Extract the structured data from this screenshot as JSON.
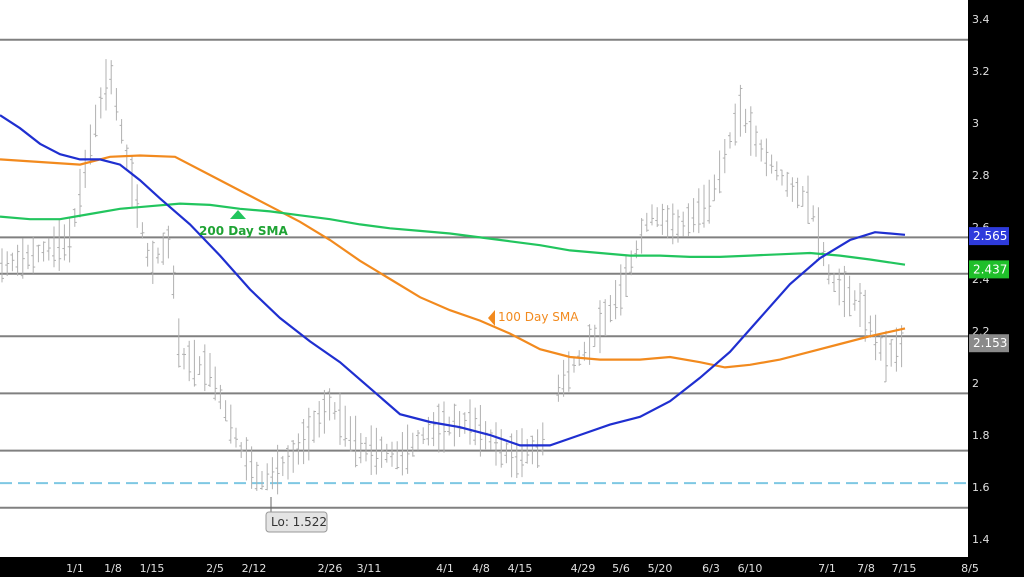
{
  "colors": {
    "background": "#ffffff",
    "axis_panel": "#000000",
    "tick_text": "#e0e0e0",
    "level_line": "#808080",
    "dashed_level": "#7ec8e3",
    "price_bars": "#b0b0b0",
    "sma_blue": "#1f2fd0",
    "sma_green": "#22c55e",
    "sma_orange": "#f28a1e",
    "badge_blue": "#2e3bdc",
    "badge_green": "#1fbf2a",
    "badge_gray": "#8a8a8a"
  },
  "chart_data": {
    "type": "line",
    "x_tick_labels": [
      "1/1",
      "1/8",
      "1/15",
      "2/5",
      "2/12",
      "2/26",
      "3/11",
      "4/1",
      "4/8",
      "4/15",
      "4/29",
      "5/6",
      "5/20",
      "6/3",
      "6/10",
      "7/1",
      "7/8",
      "7/15",
      "8/5"
    ],
    "y_tick_labels": [
      "1.4",
      "1.6",
      "1.8",
      "2",
      "2.2",
      "2.4",
      "2.6",
      "2.8",
      "3",
      "3.2",
      "3.4"
    ],
    "ylim": [
      1.4,
      3.45
    ],
    "horizontal_levels": [
      3.32,
      2.56,
      2.42,
      2.18,
      1.96,
      1.74,
      1.52
    ],
    "dashed_level": 1.615,
    "series": [
      {
        "name": "100 Day SMA",
        "color": "#f28a1e",
        "points": [
          [
            0,
            2.86
          ],
          [
            40,
            2.85
          ],
          [
            80,
            2.84
          ],
          [
            110,
            2.87
          ],
          [
            140,
            2.875
          ],
          [
            175,
            2.87
          ],
          [
            210,
            2.8
          ],
          [
            240,
            2.74
          ],
          [
            270,
            2.68
          ],
          [
            300,
            2.62
          ],
          [
            330,
            2.55
          ],
          [
            360,
            2.47
          ],
          [
            390,
            2.4
          ],
          [
            420,
            2.33
          ],
          [
            450,
            2.28
          ],
          [
            480,
            2.24
          ],
          [
            510,
            2.19
          ],
          [
            540,
            2.13
          ],
          [
            570,
            2.1
          ],
          [
            600,
            2.09
          ],
          [
            640,
            2.09
          ],
          [
            670,
            2.1
          ],
          [
            700,
            2.08
          ],
          [
            725,
            2.06
          ],
          [
            750,
            2.07
          ],
          [
            780,
            2.09
          ],
          [
            810,
            2.12
          ],
          [
            840,
            2.15
          ],
          [
            870,
            2.18
          ],
          [
            905,
            2.21
          ]
        ]
      },
      {
        "name": "200 Day SMA",
        "color": "#22c55e",
        "points": [
          [
            0,
            2.64
          ],
          [
            30,
            2.63
          ],
          [
            60,
            2.63
          ],
          [
            90,
            2.65
          ],
          [
            120,
            2.67
          ],
          [
            150,
            2.68
          ],
          [
            180,
            2.69
          ],
          [
            210,
            2.685
          ],
          [
            240,
            2.67
          ],
          [
            270,
            2.66
          ],
          [
            300,
            2.645
          ],
          [
            330,
            2.63
          ],
          [
            360,
            2.61
          ],
          [
            390,
            2.595
          ],
          [
            420,
            2.585
          ],
          [
            450,
            2.575
          ],
          [
            480,
            2.56
          ],
          [
            510,
            2.545
          ],
          [
            540,
            2.53
          ],
          [
            570,
            2.51
          ],
          [
            600,
            2.5
          ],
          [
            630,
            2.49
          ],
          [
            660,
            2.49
          ],
          [
            690,
            2.485
          ],
          [
            720,
            2.485
          ],
          [
            750,
            2.49
          ],
          [
            780,
            2.495
          ],
          [
            810,
            2.5
          ],
          [
            840,
            2.49
          ],
          [
            870,
            2.475
          ],
          [
            905,
            2.455
          ]
        ]
      },
      {
        "name": "",
        "color": "#1f2fd0",
        "points": [
          [
            0,
            3.03
          ],
          [
            20,
            2.98
          ],
          [
            40,
            2.92
          ],
          [
            60,
            2.88
          ],
          [
            80,
            2.86
          ],
          [
            100,
            2.86
          ],
          [
            120,
            2.84
          ],
          [
            140,
            2.78
          ],
          [
            160,
            2.71
          ],
          [
            190,
            2.61
          ],
          [
            220,
            2.49
          ],
          [
            250,
            2.36
          ],
          [
            280,
            2.25
          ],
          [
            310,
            2.16
          ],
          [
            340,
            2.08
          ],
          [
            370,
            1.98
          ],
          [
            400,
            1.88
          ],
          [
            430,
            1.85
          ],
          [
            460,
            1.83
          ],
          [
            490,
            1.8
          ],
          [
            520,
            1.76
          ],
          [
            550,
            1.76
          ],
          [
            580,
            1.8
          ],
          [
            610,
            1.84
          ],
          [
            640,
            1.87
          ],
          [
            670,
            1.93
          ],
          [
            700,
            2.02
          ],
          [
            730,
            2.12
          ],
          [
            760,
            2.25
          ],
          [
            790,
            2.38
          ],
          [
            820,
            2.48
          ],
          [
            850,
            2.55
          ],
          [
            875,
            2.58
          ],
          [
            905,
            2.57
          ]
        ]
      }
    ]
  },
  "price_badges": [
    {
      "label": "2.565",
      "value": 2.565,
      "color": "#2e3bdc"
    },
    {
      "label": "2.437",
      "value": 2.437,
      "color": "#1fbf2a"
    },
    {
      "label": "2.153",
      "value": 2.153,
      "color": "#8a8a8a"
    }
  ],
  "annotations": {
    "sma200_label": "200 Day SMA",
    "sma100_label": "100  Day SMA",
    "low_label": "Lo: 1.522"
  }
}
